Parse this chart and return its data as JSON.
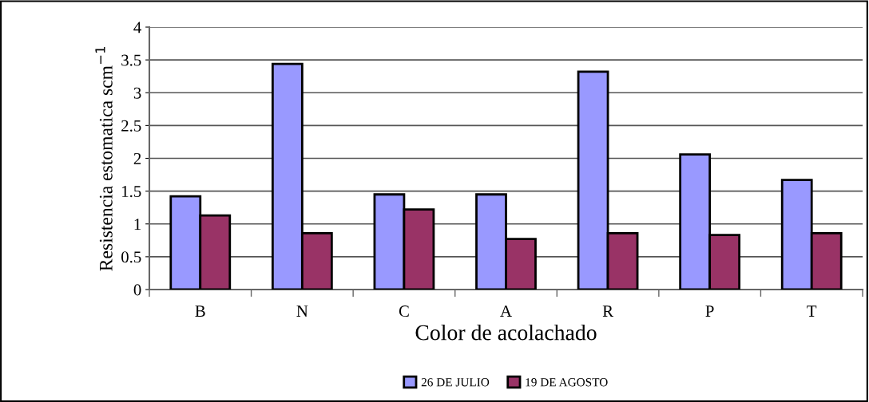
{
  "chart_data": {
    "type": "bar",
    "xlabel": "Color de acolachado",
    "ylabel": "Resistencia estomatica scm$^{−1}$",
    "categories": [
      "B",
      "N",
      "C",
      "A",
      "R",
      "P",
      "T"
    ],
    "series": [
      {
        "name": "26 DE JULIO",
        "color": "#9999ff",
        "values": [
          1.42,
          3.44,
          1.45,
          1.45,
          3.32,
          2.06,
          1.67
        ]
      },
      {
        "name": "19 DE AGOSTO",
        "color": "#993366",
        "values": [
          1.13,
          0.86,
          1.22,
          0.77,
          0.86,
          0.83,
          0.86
        ]
      }
    ],
    "ylim": [
      0,
      4
    ],
    "yticks": [
      0,
      {
        "value": 0.5,
        "label": "0.5"
      },
      1,
      {
        "value": 1.5,
        "label": "1.5"
      },
      2,
      {
        "value": 2.5,
        "label": "2.5"
      },
      3,
      {
        "value": 3.5,
        "label": "3.5"
      },
      4
    ],
    "grid": "y",
    "legend": "bottom"
  }
}
